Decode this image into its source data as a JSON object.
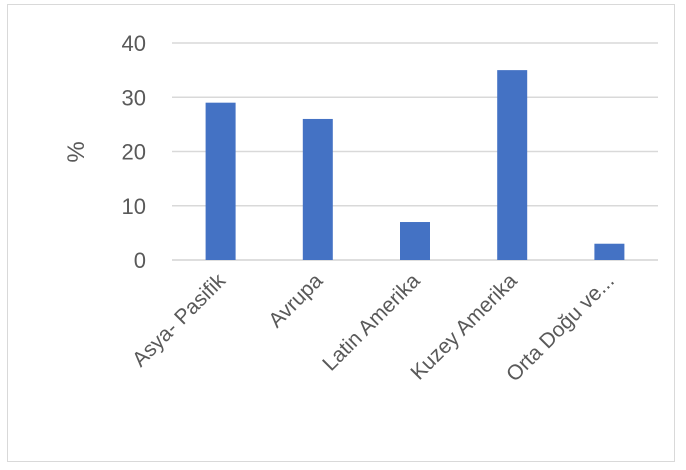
{
  "chart_data": {
    "type": "bar",
    "categories": [
      "Asya- Pasifik",
      "Avrupa",
      "Latin Amerika",
      "Kuzey Amerika",
      "Orta Doğu ve..."
    ],
    "values": [
      29,
      26,
      7,
      35,
      3
    ],
    "title": "",
    "xlabel": "",
    "ylabel": "%",
    "ylim": [
      0,
      40
    ],
    "yticks": [
      0,
      10,
      20,
      30,
      40
    ],
    "grid": true,
    "legend": "none",
    "bar_color": "#4472C4",
    "grid_color": "#d9d9d9"
  }
}
